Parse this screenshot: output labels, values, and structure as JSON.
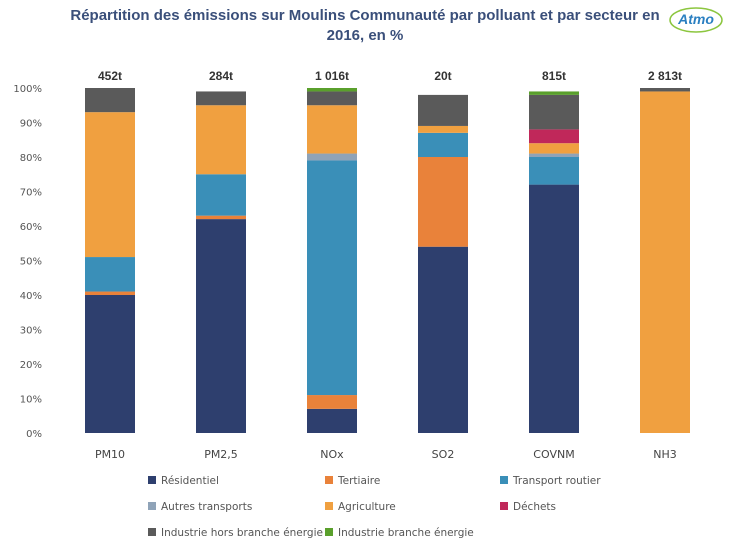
{
  "title": "Répartition des émissions sur Moulins Communauté par polluant et par secteur en 2016, en %",
  "logo": {
    "text": "Atmo",
    "color": "#2a7fc1"
  },
  "chart_data": {
    "type": "bar",
    "stacked": true,
    "categories": [
      "PM10",
      "PM2,5",
      "NOx",
      "SO2",
      "COVNM",
      "NH3"
    ],
    "totals": [
      "452t",
      "284t",
      "1 016t",
      "20t",
      "815t",
      "2 813t"
    ],
    "ylim": [
      0,
      100
    ],
    "yticks": [
      "0%",
      "10%",
      "20%",
      "30%",
      "40%",
      "50%",
      "60%",
      "70%",
      "80%",
      "90%",
      "100%"
    ],
    "grid": false,
    "legend_position": "bottom",
    "series": [
      {
        "name": "Résidentiel",
        "color": "#2e3f6e",
        "values": [
          40,
          62,
          7,
          54,
          72,
          0
        ]
      },
      {
        "name": "Tertiaire",
        "color": "#e9823a",
        "values": [
          1,
          1,
          4,
          26,
          0,
          0
        ]
      },
      {
        "name": "Transport routier",
        "color": "#3a8fb8",
        "values": [
          10,
          12,
          68,
          7,
          8,
          0
        ]
      },
      {
        "name": "Autres transports",
        "color": "#8fa3b8",
        "values": [
          0,
          0,
          2,
          0,
          1,
          0
        ]
      },
      {
        "name": "Agriculture",
        "color": "#f0a040",
        "values": [
          42,
          20,
          14,
          2,
          3,
          99
        ]
      },
      {
        "name": "Déchets",
        "color": "#c0285a",
        "values": [
          0,
          0,
          0,
          0,
          4,
          0
        ]
      },
      {
        "name": "Industrie hors branche énergie",
        "color": "#5a5a5a",
        "values": [
          7,
          4,
          4,
          9,
          10,
          1
        ]
      },
      {
        "name": "Industrie branche énergie",
        "color": "#5aa02c",
        "values": [
          0,
          0,
          1,
          0,
          1,
          0
        ]
      }
    ]
  }
}
